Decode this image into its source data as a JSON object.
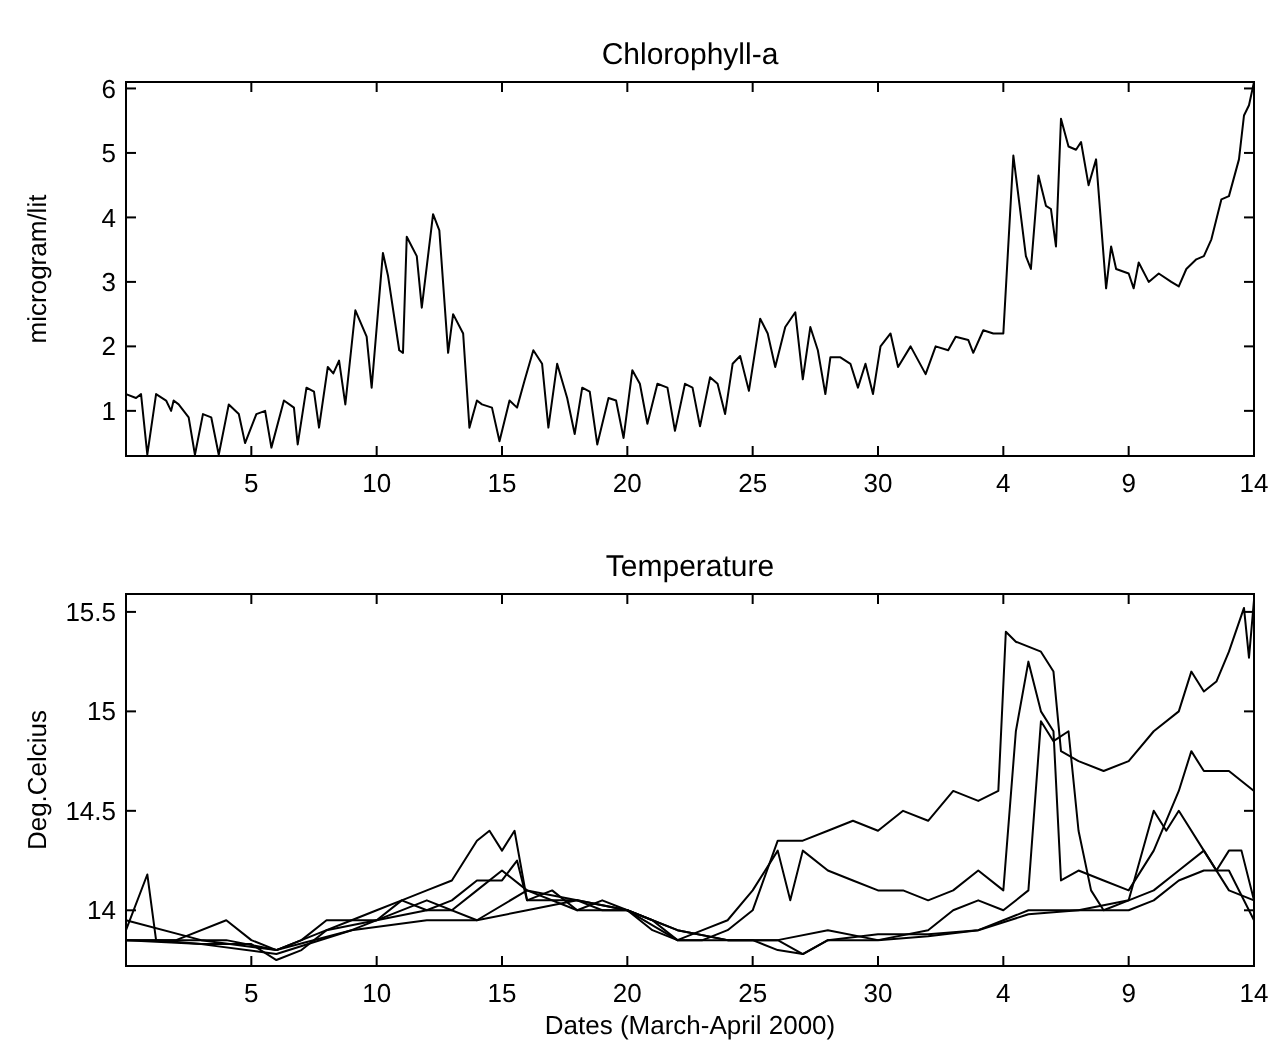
{
  "chart_data": [
    {
      "type": "line",
      "title": "Chlorophyll-a",
      "ylabel": "microgram/lit",
      "xlim": [
        "2000-02-29",
        "2000-04-14"
      ],
      "xticks": [
        {
          "value": "2000-03-05",
          "label": "5"
        },
        {
          "value": "2000-03-10",
          "label": "10"
        },
        {
          "value": "2000-03-15",
          "label": "15"
        },
        {
          "value": "2000-03-20",
          "label": "20"
        },
        {
          "value": "2000-03-25",
          "label": "25"
        },
        {
          "value": "2000-03-30",
          "label": "30"
        },
        {
          "value": "2000-04-04",
          "label": "4"
        },
        {
          "value": "2000-04-09",
          "label": "9"
        },
        {
          "value": "2000-04-14",
          "label": "14"
        }
      ],
      "ylim": [
        0.3,
        6.1
      ],
      "yticks": [
        1,
        2,
        3,
        4,
        5,
        6
      ],
      "grid": false,
      "series": [
        {
          "color": "#000000",
          "x": [
            "2000-02-29",
            "2000-02-29T09:36",
            "2000-02-29T14:24",
            "2000-02-29T20:24",
            "2000-03-01T04:48",
            "2000-03-01T14:24",
            "2000-03-01T19:12",
            "2000-03-01T21:36",
            "2000-03-02T02:24",
            "2000-03-02T12:00",
            "2000-03-02T18:00",
            "2000-03-03T01:41",
            "2000-03-03T09:36",
            "2000-03-03T16:48",
            "2000-03-04T02:24",
            "2000-03-04T12:00",
            "2000-03-04T18:00",
            "2000-03-05T04:48",
            "2000-03-05T13:12",
            "2000-03-05T19:12",
            "2000-03-06T07:12",
            "2000-03-06T16:48",
            "2000-03-06T20:24",
            "2000-03-07T04:48",
            "2000-03-07T12:00",
            "2000-03-07T16:48",
            "2000-03-08T01:12",
            "2000-03-08T06:29",
            "2000-03-08T12:00",
            "2000-03-08T18:00",
            "2000-03-09T03:36",
            "2000-03-09T14:24",
            "2000-03-09T19:12",
            "2000-03-10T06:00",
            "2000-03-10T10:48",
            "2000-03-10T21:36",
            "2000-03-11T01:12",
            "2000-03-11T04:48",
            "2000-03-11T14:24",
            "2000-03-11T19:12",
            "2000-03-12T06:00",
            "2000-03-12T12:00",
            "2000-03-12T20:24",
            "2000-03-13T01:12",
            "2000-03-13T10:48",
            "2000-03-13T16:48",
            "2000-03-14",
            "2000-03-14T04:48",
            "2000-03-14T14:24",
            "2000-03-14T21:36",
            "2000-03-15T07:12",
            "2000-03-15T14:24",
            "2000-03-15T21:36",
            "2000-03-16T06:00",
            "2000-03-16T14:24",
            "2000-03-16T20:24",
            "2000-03-17T04:48",
            "2000-03-17T14:24",
            "2000-03-17T21:36",
            "2000-03-18T04:48",
            "2000-03-18T12:00",
            "2000-03-18T19:12",
            "2000-03-19T06:00",
            "2000-03-19T13:12",
            "2000-03-19T20:24",
            "2000-03-20T04:48",
            "2000-03-20T12:00",
            "2000-03-20T19:12",
            "2000-03-21T04:48",
            "2000-03-21T14:24",
            "2000-03-21T21:36",
            "2000-03-22T07:12",
            "2000-03-22T14:24",
            "2000-03-22T21:36",
            "2000-03-23T07:12",
            "2000-03-23T14:24",
            "2000-03-23T21:36",
            "2000-03-24T04:48",
            "2000-03-24T12:00",
            "2000-03-24T20:24",
            "2000-03-25T07:12",
            "2000-03-25T14:24",
            "2000-03-25T21:36",
            "2000-03-26T07:12",
            "2000-03-26T16:48",
            "2000-03-27",
            "2000-03-27T07:12",
            "2000-03-27T14:24",
            "2000-03-27T21:36",
            "2000-03-28T02:24",
            "2000-03-28T12:00",
            "2000-03-28T21:36",
            "2000-03-29T04:48",
            "2000-03-29T12:00",
            "2000-03-29T19:12",
            "2000-03-30T02:24",
            "2000-03-30T12:00",
            "2000-03-30T19:12",
            "2000-03-31T07:12",
            "2000-03-31T21:36",
            "2000-04-01T07:12",
            "2000-04-01T19:12",
            "2000-04-02T02:24",
            "2000-04-02T14:24",
            "2000-04-02T19:12",
            "2000-04-03T04:48",
            "2000-04-03T14:24",
            "2000-04-04",
            "2000-04-04T09:36",
            "2000-04-04T21:36",
            "2000-04-05T02:24",
            "2000-04-05T09:36",
            "2000-04-05T16:48",
            "2000-04-05T21:36",
            "2000-04-06T02:24",
            "2000-04-06T07:12",
            "2000-04-06T14:24",
            "2000-04-06T21:36",
            "2000-04-07T02:24",
            "2000-04-07T09:36",
            "2000-04-07T16:48",
            "2000-04-08T02:24",
            "2000-04-08T07:12",
            "2000-04-08T12:00",
            "2000-04-09",
            "2000-04-09T04:48",
            "2000-04-09T09:36",
            "2000-04-09T19:12",
            "2000-04-10T04:48",
            "2000-04-10T16:48",
            "2000-04-11",
            "2000-04-11T07:12",
            "2000-04-11T16:48",
            "2000-04-12",
            "2000-04-12T07:12",
            "2000-04-12T16:48",
            "2000-04-13",
            "2000-04-13T09:36",
            "2000-04-13T14:24",
            "2000-04-13T19:12",
            "2000-04-14"
          ],
          "values": [
            1.26,
            1.2,
            1.26,
            0.32,
            1.26,
            1.16,
            1.0,
            1.16,
            1.1,
            0.9,
            0.32,
            0.95,
            0.9,
            0.32,
            1.1,
            0.95,
            0.5,
            0.95,
            1.0,
            0.43,
            1.16,
            1.05,
            0.48,
            1.36,
            1.3,
            0.74,
            1.68,
            1.58,
            1.78,
            1.1,
            2.56,
            2.15,
            1.36,
            3.45,
            3.1,
            1.94,
            1.9,
            3.7,
            3.4,
            2.6,
            4.05,
            3.8,
            1.9,
            2.5,
            2.2,
            0.74,
            1.16,
            1.1,
            1.05,
            0.53,
            1.16,
            1.05,
            1.47,
            1.94,
            1.73,
            0.74,
            1.73,
            1.2,
            0.64,
            1.36,
            1.3,
            0.48,
            1.2,
            1.16,
            0.58,
            1.63,
            1.42,
            0.8,
            1.42,
            1.36,
            0.69,
            1.42,
            1.36,
            0.76,
            1.52,
            1.42,
            0.95,
            1.73,
            1.85,
            1.31,
            2.43,
            2.2,
            1.68,
            2.3,
            2.53,
            1.49,
            2.3,
            1.94,
            1.26,
            1.83,
            1.83,
            1.73,
            1.36,
            1.73,
            1.26,
            2.0,
            2.2,
            1.68,
            2.0,
            1.57,
            2.0,
            1.94,
            2.15,
            2.1,
            1.9,
            2.25,
            2.2,
            2.2,
            4.96,
            3.4,
            3.2,
            4.65,
            4.18,
            4.13,
            3.55,
            5.53,
            5.1,
            5.05,
            5.17,
            4.5,
            4.9,
            2.9,
            3.55,
            3.2,
            3.13,
            2.9,
            3.3,
            3.0,
            3.13,
            3.0,
            2.93,
            3.2,
            3.35,
            3.4,
            3.66,
            4.28,
            4.33,
            4.9,
            5.58,
            5.74,
            6.1
          ]
        }
      ]
    },
    {
      "type": "line",
      "title": "Temperature",
      "xlabel": "Dates (March-April 2000)",
      "ylabel": "Deg.Celcius",
      "xlim": [
        "2000-02-29",
        "2000-04-14"
      ],
      "xticks": [
        {
          "value": "2000-03-05",
          "label": "5"
        },
        {
          "value": "2000-03-10",
          "label": "10"
        },
        {
          "value": "2000-03-15",
          "label": "15"
        },
        {
          "value": "2000-03-20",
          "label": "20"
        },
        {
          "value": "2000-03-25",
          "label": "25"
        },
        {
          "value": "2000-03-30",
          "label": "30"
        },
        {
          "value": "2000-04-04",
          "label": "4"
        },
        {
          "value": "2000-04-09",
          "label": "9"
        },
        {
          "value": "2000-04-14",
          "label": "14"
        }
      ],
      "ylim": [
        13.72,
        15.59
      ],
      "yticks": [
        14,
        14.5,
        15,
        15.5
      ],
      "grid": false,
      "series": [
        {
          "color": "#000000",
          "x": [
            "2000-02-29",
            "2000-02-29T20:24",
            "2000-03-01T04:48",
            "2000-03-03",
            "2000-03-05",
            "2000-03-06",
            "2000-03-07",
            "2000-03-08",
            "2000-03-09",
            "2000-03-10",
            "2000-03-11",
            "2000-03-12",
            "2000-03-13",
            "2000-03-14",
            "2000-03-14T12:00",
            "2000-03-15",
            "2000-03-15T12:00",
            "2000-03-16",
            "2000-03-17",
            "2000-03-18",
            "2000-03-19",
            "2000-03-20",
            "2000-03-21",
            "2000-03-22",
            "2000-03-23",
            "2000-03-24",
            "2000-03-25",
            "2000-03-26",
            "2000-03-27",
            "2000-03-28",
            "2000-03-29",
            "2000-03-30",
            "2000-03-31",
            "2000-04-01",
            "2000-04-02",
            "2000-04-03",
            "2000-04-03T19:12",
            "2000-04-04T02:24",
            "2000-04-04T12:00",
            "2000-04-05T12:00",
            "2000-04-06",
            "2000-04-06T07:12",
            "2000-04-07",
            "2000-04-08",
            "2000-04-09",
            "2000-04-10",
            "2000-04-11",
            "2000-04-11T12:00",
            "2000-04-12",
            "2000-04-12T12:00",
            "2000-04-13",
            "2000-04-13T14:24",
            "2000-04-13T19:12",
            "2000-04-14"
          ],
          "values": [
            13.9,
            14.18,
            13.85,
            13.83,
            13.83,
            13.75,
            13.8,
            13.9,
            13.95,
            13.95,
            14.05,
            14.1,
            14.15,
            14.35,
            14.4,
            14.3,
            14.4,
            14.05,
            14.05,
            14.05,
            14.0,
            14.0,
            13.9,
            13.85,
            13.85,
            13.9,
            14.0,
            14.35,
            14.35,
            14.4,
            14.45,
            14.4,
            14.5,
            14.45,
            14.6,
            14.55,
            14.6,
            15.4,
            15.35,
            15.3,
            15.2,
            14.8,
            14.75,
            14.7,
            14.75,
            14.9,
            15.0,
            15.2,
            15.1,
            15.15,
            15.3,
            15.52,
            15.27,
            15.56
          ]
        },
        {
          "color": "#000000",
          "x": [
            "2000-02-29",
            "2000-03-02",
            "2000-03-04",
            "2000-03-05",
            "2000-03-06",
            "2000-03-07",
            "2000-03-08",
            "2000-03-09",
            "2000-03-10",
            "2000-03-11",
            "2000-03-12",
            "2000-03-13",
            "2000-03-14",
            "2000-03-15",
            "2000-03-15T14:24",
            "2000-03-16",
            "2000-03-17",
            "2000-03-18",
            "2000-03-19",
            "2000-03-20",
            "2000-03-21",
            "2000-03-22",
            "2000-03-23",
            "2000-03-24",
            "2000-03-25",
            "2000-03-26",
            "2000-03-26T12:00",
            "2000-03-27",
            "2000-03-28",
            "2000-03-29",
            "2000-03-30",
            "2000-03-31",
            "2000-04-01",
            "2000-04-02",
            "2000-04-03",
            "2000-04-04",
            "2000-04-04T12:00",
            "2000-04-05",
            "2000-04-05T12:00",
            "2000-04-06",
            "2000-04-06T07:12",
            "2000-04-07",
            "2000-04-08",
            "2000-04-09",
            "2000-04-10",
            "2000-04-11",
            "2000-04-11T12:00",
            "2000-04-12",
            "2000-04-13",
            "2000-04-14"
          ],
          "values": [
            13.85,
            13.85,
            13.95,
            13.85,
            13.8,
            13.85,
            13.95,
            13.95,
            14.0,
            14.05,
            14.0,
            14.05,
            14.15,
            14.15,
            14.25,
            14.05,
            14.1,
            14.0,
            14.05,
            14.0,
            13.95,
            13.85,
            13.9,
            13.95,
            14.1,
            14.3,
            14.05,
            14.3,
            14.2,
            14.15,
            14.1,
            14.1,
            14.05,
            14.1,
            14.2,
            14.1,
            14.9,
            15.25,
            15.0,
            14.9,
            14.15,
            14.2,
            14.15,
            14.1,
            14.3,
            14.6,
            14.8,
            14.7,
            14.7,
            14.6
          ]
        },
        {
          "color": "#000000",
          "x": [
            "2000-02-29",
            "2000-03-02",
            "2000-03-04",
            "2000-03-06",
            "2000-03-08",
            "2000-03-10",
            "2000-03-12",
            "2000-03-13",
            "2000-03-14",
            "2000-03-15",
            "2000-03-16",
            "2000-03-18",
            "2000-03-20",
            "2000-03-22",
            "2000-03-24",
            "2000-03-26",
            "2000-03-28",
            "2000-03-30",
            "2000-04-01",
            "2000-04-02",
            "2000-04-03",
            "2000-04-04",
            "2000-04-05",
            "2000-04-05T12:00",
            "2000-04-06",
            "2000-04-06T14:24",
            "2000-04-07",
            "2000-04-07T12:00",
            "2000-04-08",
            "2000-04-09",
            "2000-04-10",
            "2000-04-10T12:00",
            "2000-04-11",
            "2000-04-12",
            "2000-04-12T12:00",
            "2000-04-13",
            "2000-04-13T12:00",
            "2000-04-14"
          ],
          "values": [
            13.85,
            13.85,
            13.85,
            13.8,
            13.9,
            13.95,
            14.0,
            14.0,
            14.1,
            14.2,
            14.1,
            14.05,
            14.0,
            13.9,
            13.85,
            13.85,
            13.9,
            13.85,
            13.9,
            14.0,
            14.05,
            14.0,
            14.1,
            14.95,
            14.85,
            14.9,
            14.4,
            14.1,
            14.0,
            14.05,
            14.5,
            14.4,
            14.5,
            14.3,
            14.2,
            14.3,
            14.3,
            14.05
          ]
        },
        {
          "color": "#000000",
          "x": [
            "2000-02-29",
            "2000-03-03",
            "2000-03-06",
            "2000-03-09",
            "2000-03-12",
            "2000-03-14",
            "2000-03-16",
            "2000-03-18",
            "2000-03-20",
            "2000-03-22",
            "2000-03-24",
            "2000-03-26",
            "2000-03-27",
            "2000-03-28",
            "2000-03-30",
            "2000-04-01",
            "2000-04-03",
            "2000-04-04",
            "2000-04-05",
            "2000-04-07",
            "2000-04-09",
            "2000-04-10",
            "2000-04-11",
            "2000-04-12",
            "2000-04-13",
            "2000-04-14"
          ],
          "values": [
            13.85,
            13.83,
            13.78,
            13.9,
            14.05,
            13.95,
            14.1,
            14.0,
            14.0,
            13.85,
            13.85,
            13.85,
            13.78,
            13.85,
            13.85,
            13.87,
            13.9,
            13.95,
            14.0,
            14.0,
            14.05,
            14.1,
            14.2,
            14.3,
            14.1,
            14.05
          ]
        },
        {
          "color": "#000000",
          "x": [
            "2000-02-29",
            "2000-03-03",
            "2000-03-06",
            "2000-03-09",
            "2000-03-12",
            "2000-03-14",
            "2000-03-16",
            "2000-03-18",
            "2000-03-20",
            "2000-03-22",
            "2000-03-24",
            "2000-03-25",
            "2000-03-26",
            "2000-03-27",
            "2000-03-28",
            "2000-03-30",
            "2000-04-01",
            "2000-04-03",
            "2000-04-05",
            "2000-04-07",
            "2000-04-09",
            "2000-04-10",
            "2000-04-11",
            "2000-04-12",
            "2000-04-13",
            "2000-04-14"
          ],
          "values": [
            13.95,
            13.85,
            13.8,
            13.9,
            13.95,
            13.95,
            14.0,
            14.05,
            14.0,
            13.9,
            13.85,
            13.85,
            13.8,
            13.78,
            13.85,
            13.88,
            13.88,
            13.9,
            13.98,
            14.0,
            14.0,
            14.05,
            14.15,
            14.2,
            14.2,
            13.95
          ]
        }
      ]
    }
  ]
}
